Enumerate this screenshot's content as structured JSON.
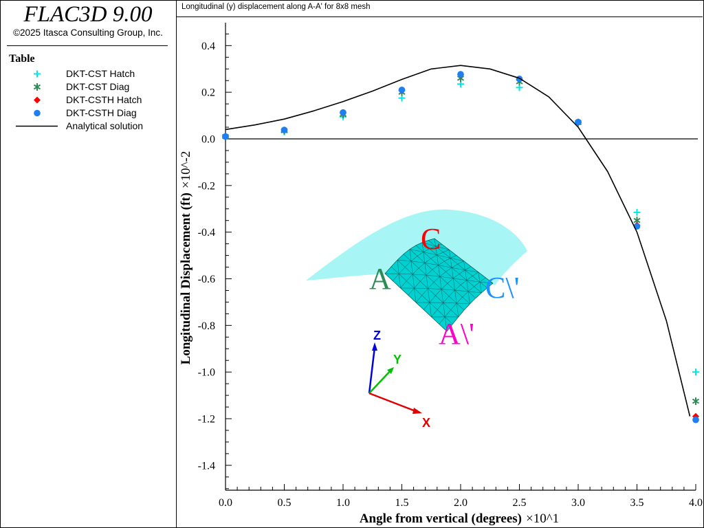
{
  "app": {
    "title": "FLAC3D 9.00",
    "copyright": "©2025 Itasca Consulting Group, Inc."
  },
  "legend": {
    "title": "Table",
    "items": [
      {
        "label": "DKT-CST Hatch",
        "symbol": "plus",
        "color": "#00e5e5"
      },
      {
        "label": "DKT-CST Diag",
        "symbol": "asterisk",
        "color": "#2e8b57"
      },
      {
        "label": "DKT-CSTH Hatch",
        "symbol": "diamond",
        "color": "#ff0000"
      },
      {
        "label": "DKT-CSTH Diag",
        "symbol": "circle",
        "color": "#1e7ff0"
      },
      {
        "label": "Analytical solution",
        "symbol": "line",
        "color": "#000000"
      }
    ]
  },
  "plot": {
    "title": "Longitudinal (y) displacement along A-A' for 8x8 mesh"
  },
  "inset": {
    "labels": {
      "a": "A",
      "c": "C",
      "a_prime": "A\\'",
      "c_prime": "C\\'"
    },
    "axes": {
      "x": "X",
      "y": "Y",
      "z": "Z"
    },
    "colors": {
      "surface": "#a8f5f5",
      "mesh": "#00d0d0",
      "a": "#2e8b57",
      "c": "#ff0000",
      "a_prime": "#ff00cc",
      "c_prime": "#1e90ff",
      "x": "#e00000",
      "y": "#00c000",
      "z": "#0000dd"
    }
  },
  "chart_data": {
    "type": "scatter",
    "xlabel": "Angle from vertical (degrees)",
    "xscale": "×10^1",
    "ylabel": "Longitudinal Displacement (ft)",
    "yscale": "×10^-2",
    "xlim": [
      0,
      4.0
    ],
    "ylim": [
      -1.5,
      0.5
    ],
    "xticks": [
      "0.0",
      "0.5",
      "1.0",
      "1.5",
      "2.0",
      "2.5",
      "3.0",
      "3.5",
      "4.0"
    ],
    "yticks": [
      "0.4",
      "0.2",
      "0.0",
      "-0.2",
      "-0.4",
      "-0.6",
      "-0.8",
      "-1.0",
      "-1.2",
      "-1.4"
    ],
    "grid": false,
    "series": [
      {
        "name": "DKT-CST Hatch",
        "symbol": "plus",
        "color": "#00e5e5",
        "x": [
          0.0,
          0.5,
          1.0,
          1.5,
          2.0,
          2.5,
          3.0,
          3.5,
          4.0
        ],
        "y": [
          0.01,
          0.03,
          0.095,
          0.175,
          0.235,
          0.22,
          0.07,
          -0.315,
          -1.0
        ]
      },
      {
        "name": "DKT-CST Diag",
        "symbol": "asterisk",
        "color": "#2e8b57",
        "x": [
          0.0,
          0.5,
          1.0,
          1.5,
          2.0,
          2.5,
          3.0,
          3.5,
          4.0
        ],
        "y": [
          0.01,
          0.035,
          0.105,
          0.2,
          0.26,
          0.245,
          0.07,
          -0.35,
          -1.125
        ]
      },
      {
        "name": "DKT-CSTH Hatch",
        "symbol": "diamond",
        "color": "#ff0000",
        "x": [
          0.0,
          0.5,
          1.0,
          1.5,
          2.0,
          2.5,
          3.0,
          3.5,
          4.0
        ],
        "y": [
          0.01,
          0.038,
          0.112,
          0.208,
          0.275,
          0.255,
          0.072,
          -0.37,
          -1.19
        ]
      },
      {
        "name": "DKT-CSTH Diag",
        "symbol": "circle",
        "color": "#1e7ff0",
        "x": [
          0.0,
          0.5,
          1.0,
          1.5,
          2.0,
          2.5,
          3.0,
          3.5,
          4.0
        ],
        "y": [
          0.01,
          0.038,
          0.113,
          0.21,
          0.277,
          0.257,
          0.072,
          -0.375,
          -1.205
        ]
      },
      {
        "name": "Analytical solution",
        "symbol": "line",
        "color": "#000000",
        "x": [
          0.0,
          0.25,
          0.5,
          0.75,
          1.0,
          1.25,
          1.5,
          1.75,
          2.0,
          2.25,
          2.5,
          2.75,
          3.0,
          3.25,
          3.5,
          3.75,
          3.95
        ],
        "y": [
          0.04,
          0.06,
          0.085,
          0.12,
          0.16,
          0.205,
          0.255,
          0.3,
          0.315,
          0.3,
          0.26,
          0.18,
          0.05,
          -0.14,
          -0.4,
          -0.78,
          -1.19
        ]
      }
    ]
  }
}
